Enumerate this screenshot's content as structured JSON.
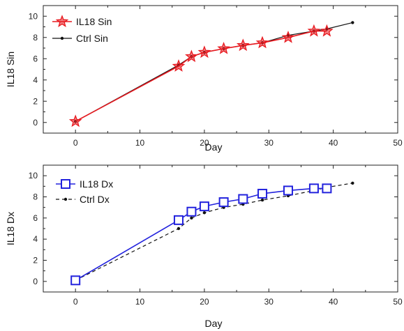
{
  "chart_data": [
    {
      "type": "line",
      "xlabel": "Day",
      "ylabel": "IL18 Sin",
      "xlim": [
        -5,
        50
      ],
      "ylim": [
        -1,
        11
      ],
      "xticks": [
        0,
        10,
        20,
        30,
        40,
        50
      ],
      "yticks": [
        0,
        2,
        4,
        6,
        8,
        10
      ],
      "legend_position": "top-left",
      "grid": false,
      "series": [
        {
          "name": "IL18 Sin",
          "marker": "star",
          "color": "#e8191f",
          "line_style": "solid",
          "x": [
            0,
            16,
            18,
            20,
            23,
            26,
            29,
            33,
            37,
            39
          ],
          "y": [
            0.1,
            5.3,
            6.2,
            6.6,
            6.95,
            7.25,
            7.5,
            8.0,
            8.6,
            8.6
          ]
        },
        {
          "name": "Ctrl Sin",
          "marker": "dot",
          "color": "#111111",
          "line_style": "solid",
          "x": [
            0,
            16,
            18,
            20,
            23,
            26,
            29,
            33,
            37,
            39,
            43
          ],
          "y": [
            0.1,
            5.4,
            6.2,
            6.6,
            6.95,
            7.25,
            7.5,
            8.2,
            8.6,
            8.8,
            9.4
          ]
        }
      ]
    },
    {
      "type": "line",
      "xlabel": "Day",
      "ylabel": "IL18 Dx",
      "xlim": [
        -5,
        50
      ],
      "ylim": [
        -1,
        11
      ],
      "xticks": [
        0,
        10,
        20,
        30,
        40,
        50
      ],
      "yticks": [
        0,
        2,
        4,
        6,
        8,
        10
      ],
      "legend_position": "top-left",
      "grid": false,
      "series": [
        {
          "name": "IL18 Dx",
          "marker": "square",
          "color": "#2222dd",
          "line_style": "solid",
          "x": [
            0,
            16,
            18,
            20,
            23,
            26,
            29,
            33,
            37,
            39
          ],
          "y": [
            0.1,
            5.8,
            6.6,
            7.1,
            7.5,
            7.8,
            8.3,
            8.6,
            8.8,
            8.8
          ]
        },
        {
          "name": "Ctrl Dx",
          "marker": "dot",
          "color": "#111111",
          "line_style": "dashed",
          "x": [
            0,
            16,
            18,
            20,
            23,
            26,
            29,
            33,
            37,
            39,
            43
          ],
          "y": [
            0.1,
            5.0,
            6.0,
            6.5,
            7.0,
            7.3,
            7.7,
            8.1,
            8.6,
            8.9,
            9.3
          ]
        }
      ]
    }
  ]
}
